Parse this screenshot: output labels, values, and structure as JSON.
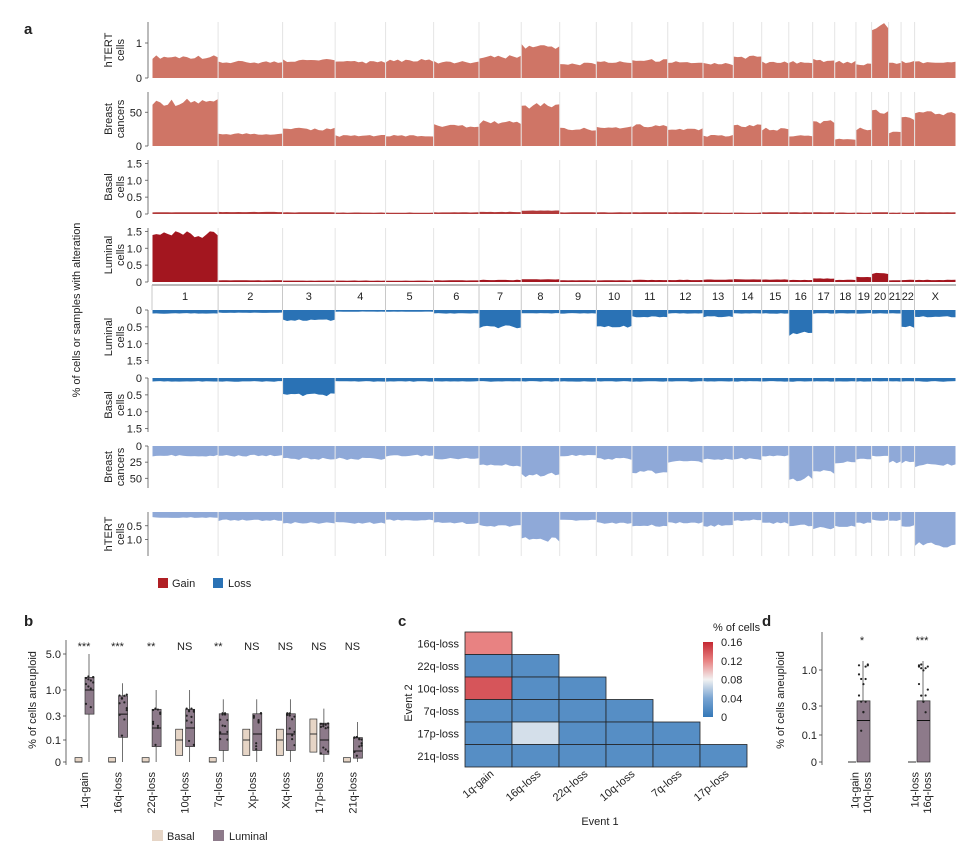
{
  "figure": {
    "panel_labels": [
      "a",
      "b",
      "c",
      "d"
    ]
  },
  "chart_data": [
    {
      "panel": "a",
      "type": "area",
      "ylabel": "% of cells or samples with alteration",
      "chromosomes": [
        "1",
        "2",
        "3",
        "4",
        "5",
        "6",
        "7",
        "8",
        "9",
        "10",
        "11",
        "12",
        "13",
        "14",
        "15",
        "16",
        "17",
        "18",
        "19",
        "20",
        "21",
        "22",
        "X"
      ],
      "chrom_sizes": [
        249,
        243,
        198,
        190,
        181,
        171,
        159,
        145,
        138,
        134,
        135,
        133,
        114,
        107,
        102,
        90,
        83,
        80,
        59,
        64,
        47,
        51,
        156
      ],
      "gain_tracks": [
        {
          "name": "hTERT cells",
          "label_lines": [
            "hTERT",
            "cells"
          ],
          "ticks": [
            "1",
            "0"
          ],
          "tick_values": [
            1,
            0
          ],
          "ymax": 1.6,
          "color": "#cf7566",
          "values": [
            0.6,
            0.45,
            0.5,
            0.45,
            0.5,
            0.45,
            0.6,
            0.9,
            0.4,
            0.45,
            0.5,
            0.45,
            0.4,
            0.6,
            0.45,
            0.45,
            0.5,
            0.45,
            0.4,
            1.5,
            0.4,
            0.45,
            0.45
          ]
        },
        {
          "name": "Breast cancers",
          "label_lines": [
            "Breast",
            "cancers"
          ],
          "ticks": [
            "50",
            "0"
          ],
          "tick_values": [
            50,
            0
          ],
          "ymax": 80,
          "color": "#cf7566",
          "values": [
            65,
            18,
            25,
            15,
            15,
            30,
            35,
            60,
            25,
            28,
            30,
            25,
            15,
            30,
            25,
            15,
            35,
            10,
            25,
            50,
            20,
            40,
            50
          ]
        },
        {
          "name": "Basal cells",
          "label_lines": [
            "Basal",
            "cells"
          ],
          "ticks": [
            "1.5",
            "1.0",
            "0.5",
            "0"
          ],
          "tick_values": [
            1.5,
            1.0,
            0.5,
            0
          ],
          "ymax": 1.6,
          "color": "#b23a3a",
          "values": [
            0.05,
            0.06,
            0.05,
            0.04,
            0.04,
            0.05,
            0.06,
            0.1,
            0.05,
            0.05,
            0.05,
            0.05,
            0.04,
            0.04,
            0.05,
            0.05,
            0.05,
            0.04,
            0.04,
            0.05,
            0.04,
            0.04,
            0.05
          ]
        },
        {
          "name": "Luminal cells",
          "label_lines": [
            "Luminal",
            "cells"
          ],
          "ticks": [
            "1.5",
            "1.0",
            "0.5",
            "0"
          ],
          "tick_values": [
            1.5,
            1.0,
            0.5,
            0
          ],
          "ymax": 1.6,
          "color": "#a3161f",
          "values": [
            1.38,
            0.05,
            0.04,
            0.04,
            0.04,
            0.05,
            0.06,
            0.08,
            0.05,
            0.05,
            0.06,
            0.06,
            0.07,
            0.08,
            0.07,
            0.06,
            0.1,
            0.06,
            0.15,
            0.25,
            0.05,
            0.06,
            0.06
          ]
        }
      ],
      "loss_tracks": [
        {
          "name": "Luminal cells",
          "label_lines": [
            "Luminal",
            "cells"
          ],
          "ticks": [
            "0",
            "0.5",
            "1.0",
            "1.5"
          ],
          "tick_values": [
            0,
            0.5,
            1.0,
            1.5
          ],
          "ymax": 1.6,
          "color": "#2a72b5",
          "values": [
            0.1,
            0.08,
            0.3,
            0.05,
            0.05,
            0.1,
            0.5,
            0.1,
            0.1,
            0.5,
            0.2,
            0.1,
            0.2,
            0.1,
            0.1,
            0.7,
            0.1,
            0.1,
            0.1,
            0.1,
            0.1,
            0.5,
            0.2
          ]
        },
        {
          "name": "Basal cells",
          "label_lines": [
            "Basal",
            "cells"
          ],
          "ticks": [
            "0",
            "0.5",
            "1.0",
            "1.5"
          ],
          "tick_values": [
            0,
            0.5,
            1.0,
            1.5
          ],
          "ymax": 1.6,
          "color": "#2a72b5",
          "values": [
            0.1,
            0.1,
            0.5,
            0.1,
            0.1,
            0.1,
            0.1,
            0.1,
            0.1,
            0.1,
            0.1,
            0.1,
            0.1,
            0.1,
            0.1,
            0.1,
            0.1,
            0.1,
            0.1,
            0.1,
            0.1,
            0.1,
            0.1
          ]
        },
        {
          "name": "Breast cancers",
          "label_lines": [
            "Breast",
            "cancers"
          ],
          "ticks": [
            "0",
            "25",
            "50"
          ],
          "tick_values": [
            0,
            25,
            50
          ],
          "ymax": 65,
          "color": "#8fa9d8",
          "values": [
            15,
            15,
            20,
            20,
            15,
            20,
            30,
            45,
            15,
            20,
            40,
            25,
            20,
            20,
            15,
            50,
            40,
            25,
            20,
            15,
            25,
            25,
            30
          ]
        },
        {
          "name": "hTERT cells",
          "label_lines": [
            "hTERT",
            "cells"
          ],
          "ticks": [
            "0.5",
            "1.0"
          ],
          "tick_values": [
            0.5,
            1.0
          ],
          "ymax": 1.6,
          "color": "#8fa9d8",
          "values": [
            0.2,
            0.3,
            0.4,
            0.4,
            0.3,
            0.4,
            0.5,
            1.0,
            0.3,
            0.4,
            0.5,
            0.4,
            0.5,
            0.3,
            0.4,
            0.5,
            0.6,
            0.5,
            0.4,
            0.3,
            0.3,
            0.5,
            1.2
          ]
        }
      ],
      "legend": [
        {
          "label": "Gain",
          "color": "#b01f24"
        },
        {
          "label": "Loss",
          "color": "#2a72b5"
        }
      ]
    },
    {
      "panel": "b",
      "type": "box",
      "ylabel": "% of cells aneuploid",
      "yticks": [
        "5.0",
        "1.0",
        "0.3",
        "0.1",
        "0"
      ],
      "categories": [
        "1q-gain",
        "16q-loss",
        "22q-loss",
        "10q-loss",
        "7q-loss",
        "Xp-loss",
        "Xq-loss",
        "17p-loss",
        "21q-loss"
      ],
      "significance": [
        "***",
        "***",
        "**",
        "NS",
        "**",
        "NS",
        "NS",
        "NS",
        "NS"
      ],
      "groups": [
        {
          "name": "Basal",
          "color": "#e6d5c6"
        },
        {
          "name": "Luminal",
          "color": "#8d7a8a"
        }
      ],
      "basal_medians": [
        0,
        0,
        0,
        0.1,
        0,
        0.1,
        0.1,
        0.15,
        0
      ],
      "luminal_medians": [
        1.0,
        0.35,
        0.2,
        0.2,
        0.15,
        0.15,
        0.15,
        0.1,
        0.05
      ]
    },
    {
      "panel": "c",
      "type": "heatmap",
      "title": "% of cells",
      "xlabel": "Event 1",
      "ylabel": "Event 2",
      "rows": [
        "16q-loss",
        "22q-loss",
        "10q-loss",
        "7q-loss",
        "17p-loss",
        "21q-loss"
      ],
      "cols": [
        "1q-gain",
        "16q-loss",
        "22q-loss",
        "10q-loss",
        "7q-loss",
        "17p-loss"
      ],
      "values": [
        [
          0.12,
          null,
          null,
          null,
          null,
          null
        ],
        [
          0.02,
          0.02,
          null,
          null,
          null,
          null
        ],
        [
          0.14,
          0.02,
          0.02,
          null,
          null,
          null
        ],
        [
          0.02,
          0.02,
          0.02,
          0.02,
          null,
          null
        ],
        [
          0.02,
          0.07,
          0.02,
          0.02,
          0.02,
          null
        ],
        [
          0.02,
          0.02,
          0.02,
          0.02,
          0.02,
          0.02
        ]
      ],
      "colorbar_ticks": [
        "0.16",
        "0.12",
        "0.08",
        "0.04",
        "0"
      ],
      "colorbar_values": [
        0.16,
        0.12,
        0.08,
        0.04,
        0
      ],
      "vmin": 0,
      "vmax": 0.16
    },
    {
      "panel": "d",
      "type": "box",
      "ylabel": "% of cells aneuploid",
      "yticks": [
        "1.0",
        "0.3",
        "0.1",
        "0"
      ],
      "categories": [
        [
          "1q-gain",
          "10q-loss"
        ],
        [
          "1q-loss",
          "16q-loss"
        ]
      ],
      "significance": [
        "*",
        "***"
      ],
      "luminal_medians": [
        0.2,
        0.2
      ]
    }
  ]
}
